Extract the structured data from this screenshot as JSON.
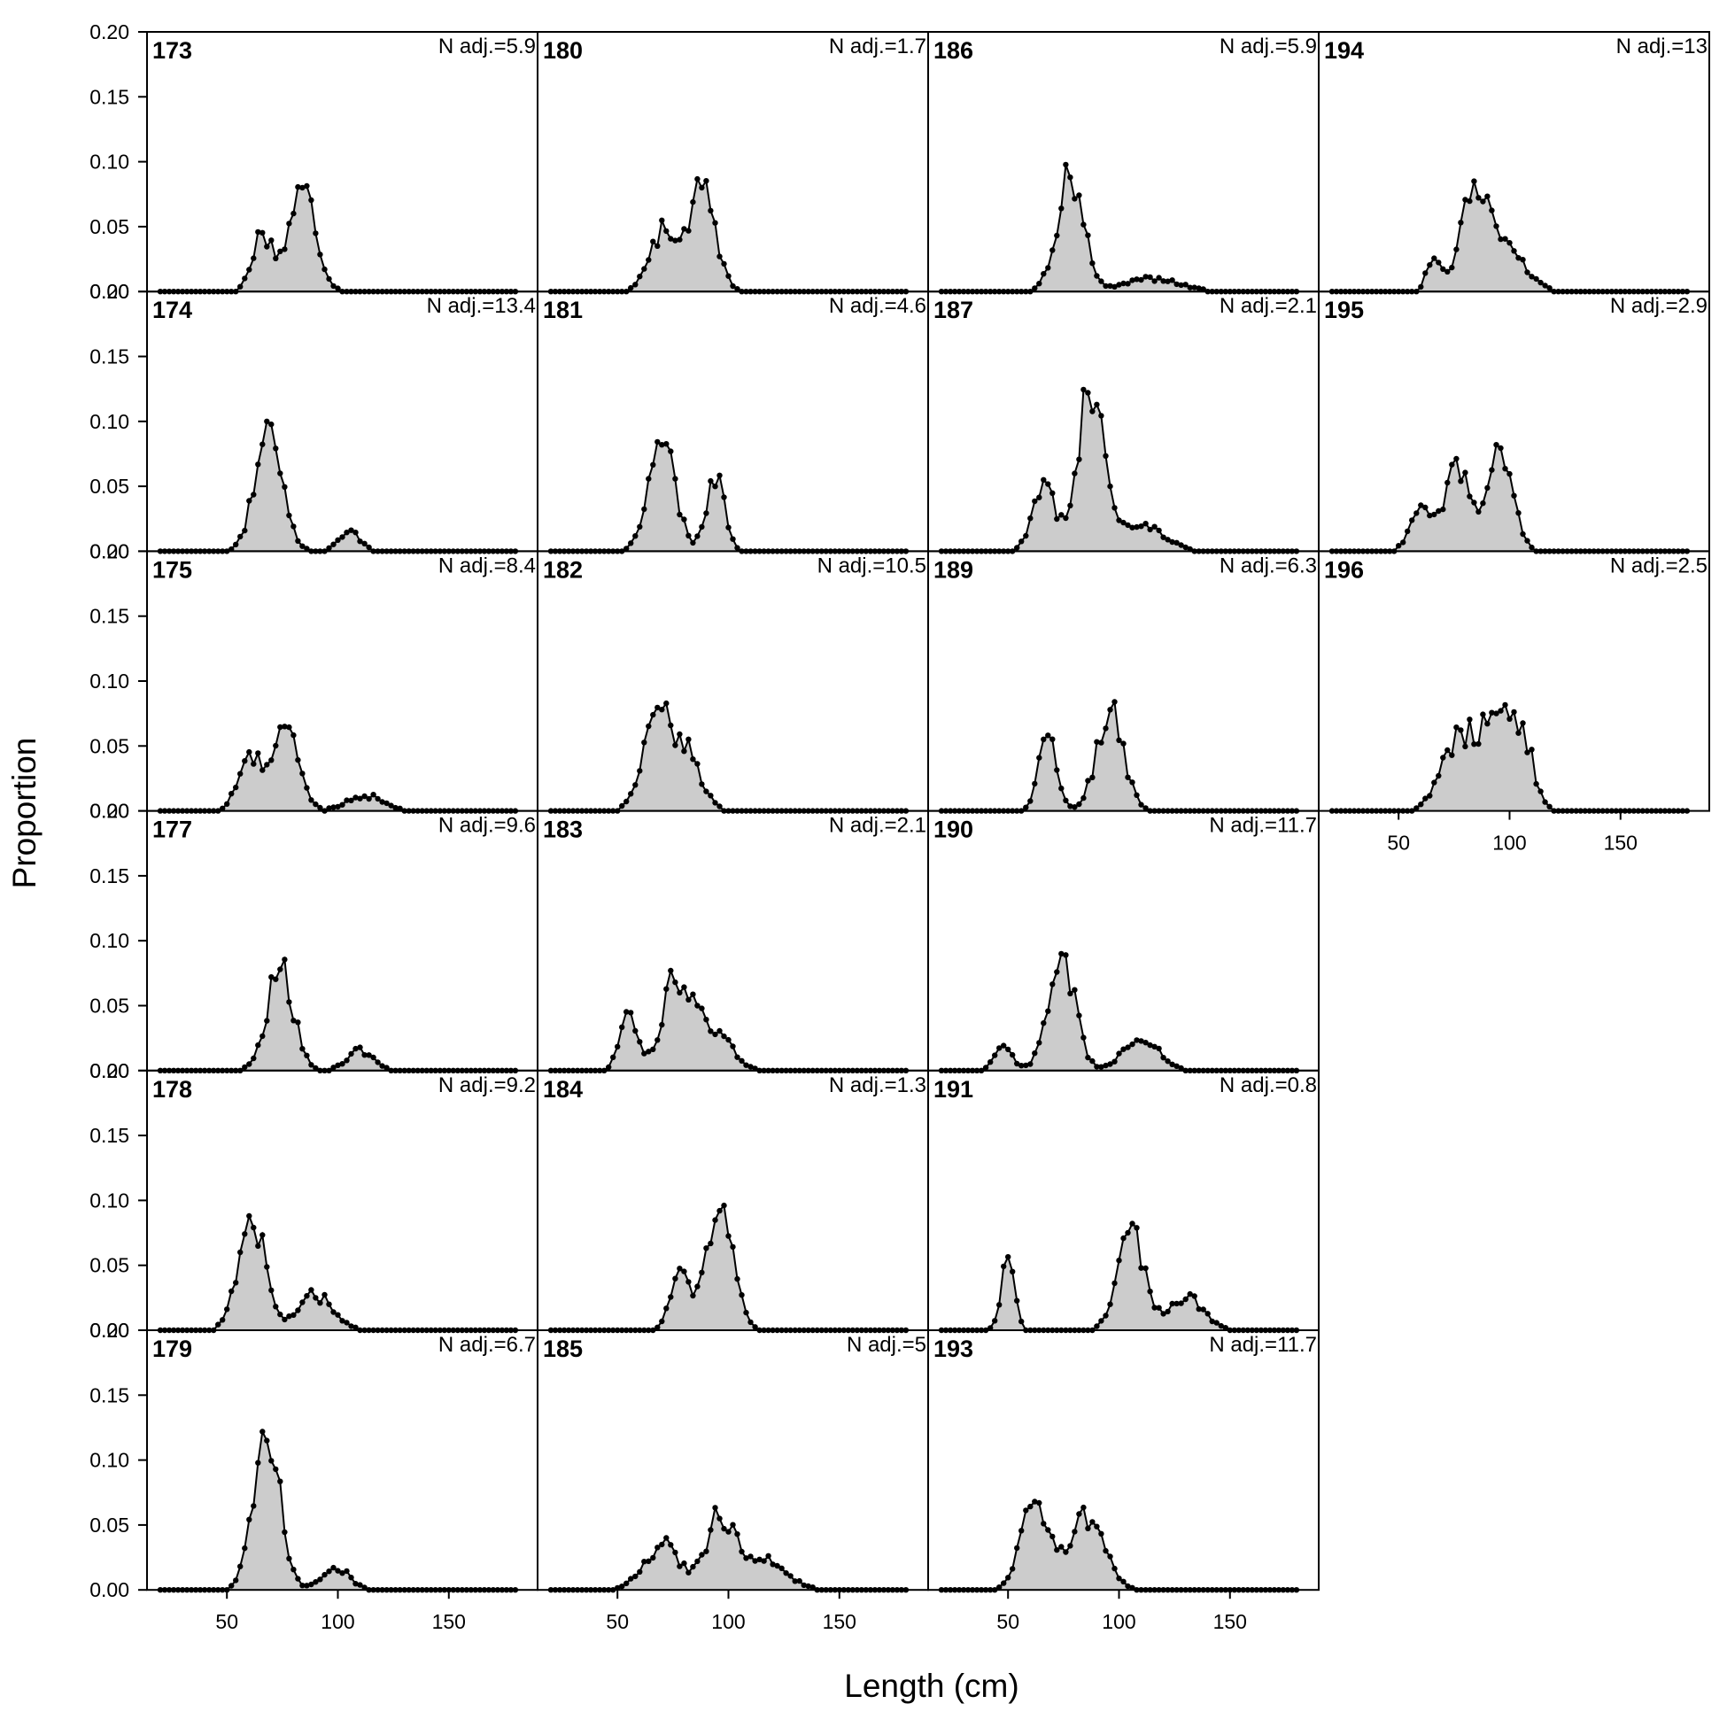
{
  "chart_data": {
    "type": "area",
    "xlabel": "Length (cm)",
    "ylabel": "Proportion",
    "xlim": [
      14,
      190
    ],
    "ylim": [
      0,
      0.2
    ],
    "x_ticks": [
      50,
      100,
      150
    ],
    "y_ticks": [
      "0.00",
      "0.05",
      "0.10",
      "0.15",
      "0.20"
    ],
    "columns": 4,
    "rows": 6,
    "panels": [
      {
        "label": "173",
        "n": "N adj.=5.9",
        "col": 0,
        "row": 0,
        "mode": [
          84,
          0.08
        ],
        "secondary": [
          {
            "x": 66,
            "y": 0.045,
            "w": 4.5
          }
        ]
      },
      {
        "label": "174",
        "n": "N adj.=13.4",
        "col": 0,
        "row": 1,
        "mode": [
          69,
          0.1
        ],
        "secondary": [
          {
            "x": 105,
            "y": 0.015,
            "w": 5
          }
        ]
      },
      {
        "label": "175",
        "n": "N adj.=8.4",
        "col": 0,
        "row": 2,
        "mode": [
          76,
          0.065
        ],
        "secondary": [
          {
            "x": 60,
            "y": 0.04,
            "w": 5
          },
          {
            "x": 112,
            "y": 0.012,
            "w": 8
          }
        ]
      },
      {
        "label": "177",
        "n": "N adj.=9.6",
        "col": 0,
        "row": 3,
        "mode": [
          74,
          0.078
        ],
        "secondary": [
          {
            "x": 110,
            "y": 0.015,
            "w": 6
          }
        ]
      },
      {
        "label": "178",
        "n": "N adj.=9.2",
        "col": 0,
        "row": 4,
        "mode": [
          61,
          0.088
        ],
        "secondary": [
          {
            "x": 90,
            "y": 0.027,
            "w": 8
          }
        ]
      },
      {
        "label": "179",
        "n": "N adj.=6.7",
        "col": 0,
        "row": 5,
        "mode": [
          68,
          0.115
        ],
        "secondary": [
          {
            "x": 99,
            "y": 0.018,
            "w": 6
          }
        ]
      },
      {
        "label": "180",
        "n": "N adj.=1.7",
        "col": 1,
        "row": 0,
        "mode": [
          88,
          0.08
        ],
        "secondary": [
          {
            "x": 70,
            "y": 0.045,
            "w": 6
          }
        ]
      },
      {
        "label": "181",
        "n": "N adj.=4.6",
        "col": 1,
        "row": 1,
        "mode": [
          70,
          0.082
        ],
        "secondary": [
          {
            "x": 94,
            "y": 0.058,
            "w": 4
          }
        ]
      },
      {
        "label": "182",
        "n": "N adj.=10.5",
        "col": 1,
        "row": 2,
        "mode": [
          67,
          0.074
        ],
        "secondary": [
          {
            "x": 80,
            "y": 0.045,
            "w": 7
          }
        ]
      },
      {
        "label": "183",
        "n": "N adj.=2.1",
        "col": 1,
        "row": 3,
        "mode": [
          76,
          0.068
        ],
        "secondary": [
          {
            "x": 55,
            "y": 0.04,
            "w": 4
          },
          {
            "x": 92,
            "y": 0.035,
            "w": 8
          }
        ]
      },
      {
        "label": "184",
        "n": "N adj.=1.3",
        "col": 1,
        "row": 4,
        "mode": [
          96,
          0.092
        ],
        "secondary": [
          {
            "x": 78,
            "y": 0.045,
            "w": 4
          }
        ]
      },
      {
        "label": "185",
        "n": "N adj.=5",
        "col": 1,
        "row": 5,
        "mode": [
          96,
          0.055
        ],
        "secondary": [
          {
            "x": 70,
            "y": 0.035,
            "w": 8
          },
          {
            "x": 115,
            "y": 0.025,
            "w": 10
          }
        ]
      },
      {
        "label": "186",
        "n": "N adj.=5.9",
        "col": 2,
        "row": 0,
        "mode": [
          78,
          0.088
        ],
        "secondary": [
          {
            "x": 115,
            "y": 0.01,
            "w": 12
          }
        ]
      },
      {
        "label": "187",
        "n": "N adj.=2.1",
        "col": 2,
        "row": 1,
        "mode": [
          87,
          0.122
        ],
        "secondary": [
          {
            "x": 66,
            "y": 0.05,
            "w": 5
          },
          {
            "x": 110,
            "y": 0.02,
            "w": 10
          }
        ]
      },
      {
        "label": "189",
        "n": "N adj.=6.3",
        "col": 2,
        "row": 2,
        "mode": [
          96,
          0.078
        ],
        "secondary": [
          {
            "x": 68,
            "y": 0.06,
            "w": 4
          }
        ]
      },
      {
        "label": "190",
        "n": "N adj.=11.7",
        "col": 2,
        "row": 3,
        "mode": [
          74,
          0.09
        ],
        "secondary": [
          {
            "x": 110,
            "y": 0.025,
            "w": 8
          },
          {
            "x": 48,
            "y": 0.018,
            "w": 4
          }
        ]
      },
      {
        "label": "191",
        "n": "N adj.=0.8",
        "col": 2,
        "row": 4,
        "mode": [
          105,
          0.075
        ],
        "secondary": [
          {
            "x": 50,
            "y": 0.055,
            "w": 3
          },
          {
            "x": 130,
            "y": 0.025,
            "w": 8
          }
        ]
      },
      {
        "label": "193",
        "n": "N adj.=11.7",
        "col": 2,
        "row": 5,
        "mode": [
          62,
          0.068
        ],
        "secondary": [
          {
            "x": 85,
            "y": 0.058,
            "w": 8
          }
        ]
      },
      {
        "label": "194",
        "n": "N adj.=13",
        "col": 3,
        "row": 0,
        "mode": [
          84,
          0.085
        ],
        "secondary": [
          {
            "x": 66,
            "y": 0.03,
            "w": 3
          },
          {
            "x": 100,
            "y": 0.03,
            "w": 8
          }
        ]
      },
      {
        "label": "195",
        "n": "N adj.=2.9",
        "col": 3,
        "row": 1,
        "mode": [
          95,
          0.082
        ],
        "secondary": [
          {
            "x": 76,
            "y": 0.07,
            "w": 5
          },
          {
            "x": 60,
            "y": 0.03,
            "w": 5
          }
        ]
      },
      {
        "label": "196",
        "n": "N adj.=2.5",
        "col": 3,
        "row": 2,
        "mode": [
          95,
          0.075
        ],
        "secondary": [
          {
            "x": 78,
            "y": 0.06,
            "w": 8
          },
          {
            "x": 106,
            "y": 0.05,
            "w": 5
          }
        ]
      }
    ]
  }
}
